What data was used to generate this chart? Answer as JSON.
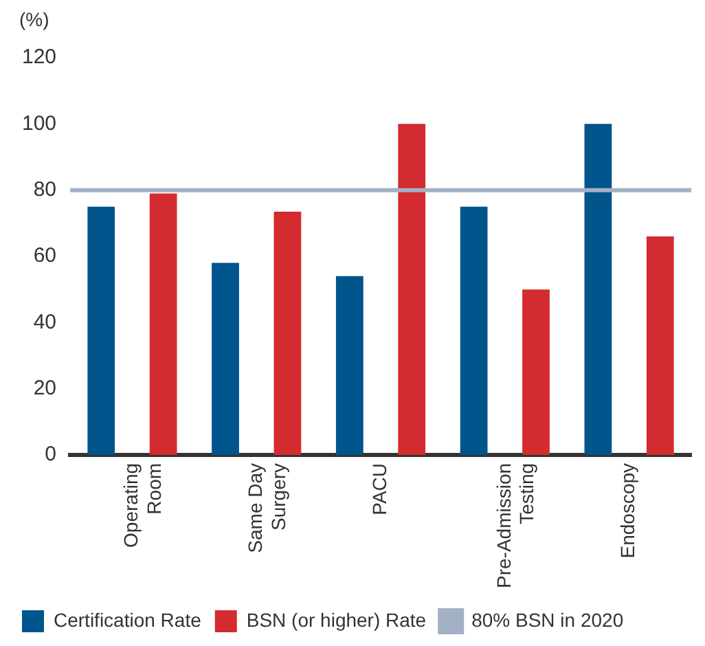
{
  "chart_data": {
    "type": "bar",
    "ylabel": "(%)",
    "categories": [
      "Operating Room",
      "Same Day Surgery",
      "PACU",
      "Pre-Admission Testing",
      "Endoscopy"
    ],
    "series": [
      {
        "name": "Certification Rate",
        "color": "#00558c",
        "values": [
          75,
          58,
          54,
          75,
          100
        ]
      },
      {
        "name": "BSN (or higher) Rate",
        "color": "#d42b30",
        "values": [
          79,
          73.5,
          100,
          50,
          66
        ]
      }
    ],
    "ylim": [
      0,
      120
    ],
    "yticks": [
      0,
      20,
      40,
      60,
      80,
      100,
      120
    ],
    "grid": false,
    "legend": "bottom",
    "ref_lines": [
      {
        "axis": "y",
        "value": 80,
        "label": "80% BSN in 2020",
        "color": "#a3b1c6"
      }
    ]
  }
}
